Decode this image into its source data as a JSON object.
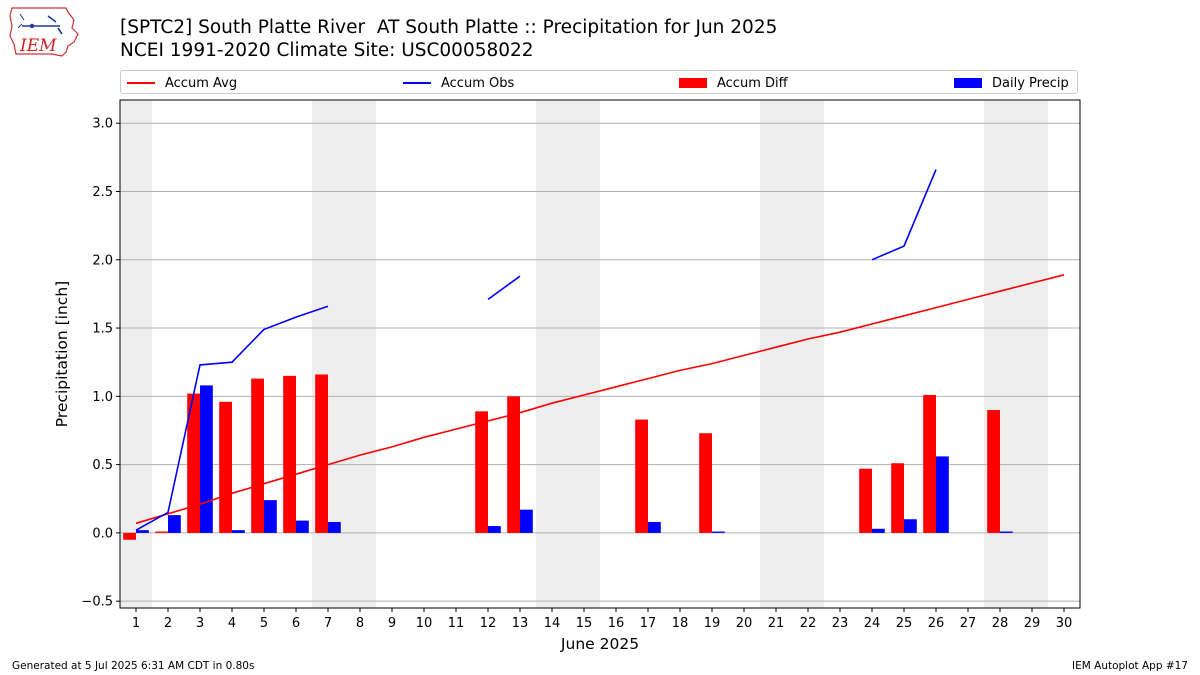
{
  "header": {
    "title": "[SPTC2] South Platte River  AT South Platte :: Precipitation for Jun 2025",
    "subtitle": "NCEI 1991-2020 Climate Site: USC00058022",
    "logo_text": "IEM"
  },
  "legend": {
    "accum_avg": "Accum Avg",
    "accum_obs": "Accum Obs",
    "accum_diff": "Accum Diff",
    "daily_precip": "Daily Precip"
  },
  "footer": {
    "generated": "Generated at 5 Jul 2025 6:31 AM CDT in 0.80s",
    "app": "IEM Autoplot App #17"
  },
  "colors": {
    "accum_avg": "#ff0000",
    "accum_obs": "#0000ff",
    "accum_diff": "#ff0000",
    "daily_precip": "#0000ff",
    "weekend_shade": "#eeeeee",
    "grid": "#b0b0b0"
  },
  "chart_data": {
    "type": "bar",
    "xlabel": "June 2025",
    "ylabel": "Precipitation [inch]",
    "xlim": [
      0.5,
      30.5
    ],
    "ylim": [
      -0.55,
      3.17
    ],
    "yticks": [
      -0.5,
      0.0,
      0.5,
      1.0,
      1.5,
      2.0,
      2.5,
      3.0
    ],
    "ytick_labels": [
      "−0.5",
      "0.0",
      "0.5",
      "1.0",
      "1.5",
      "2.0",
      "2.5",
      "3.0"
    ],
    "days": [
      1,
      2,
      3,
      4,
      5,
      6,
      7,
      8,
      9,
      10,
      11,
      12,
      13,
      14,
      15,
      16,
      17,
      18,
      19,
      20,
      21,
      22,
      23,
      24,
      25,
      26,
      27,
      28,
      29,
      30
    ],
    "grid": "horizontal",
    "legend_position": "top",
    "weekend_spans": [
      [
        0.5,
        1.5
      ],
      [
        6.5,
        8.5
      ],
      [
        13.5,
        15.5
      ],
      [
        20.5,
        22.5
      ],
      [
        27.5,
        29.5
      ]
    ],
    "series": [
      {
        "name": "Accum Diff",
        "kind": "bar",
        "values": [
          -0.05,
          0.01,
          1.02,
          0.96,
          1.13,
          1.15,
          1.16,
          null,
          null,
          null,
          null,
          0.89,
          1.0,
          null,
          null,
          null,
          0.83,
          null,
          0.73,
          null,
          null,
          null,
          null,
          0.47,
          0.51,
          1.01,
          null,
          0.9,
          null,
          null
        ]
      },
      {
        "name": "Daily Precip",
        "kind": "bar",
        "values": [
          0.02,
          0.13,
          1.08,
          0.02,
          0.24,
          0.09,
          0.08,
          null,
          null,
          null,
          null,
          0.05,
          0.17,
          null,
          null,
          null,
          0.08,
          null,
          0.01,
          null,
          null,
          null,
          null,
          0.03,
          0.1,
          0.56,
          null,
          0.01,
          null,
          null
        ]
      },
      {
        "name": "Accum Avg",
        "kind": "line",
        "values": [
          0.07,
          0.14,
          0.21,
          0.29,
          0.36,
          0.43,
          0.5,
          0.57,
          0.63,
          0.7,
          0.76,
          0.82,
          0.88,
          0.95,
          1.01,
          1.07,
          1.13,
          1.19,
          1.24,
          1.3,
          1.36,
          1.42,
          1.47,
          1.53,
          1.59,
          1.65,
          1.71,
          1.77,
          1.83,
          1.89
        ]
      },
      {
        "name": "Accum Obs",
        "kind": "line",
        "values": [
          0.02,
          0.15,
          1.23,
          1.25,
          1.49,
          1.58,
          1.66,
          null,
          null,
          null,
          null,
          1.71,
          1.88,
          null,
          null,
          null,
          null,
          null,
          null,
          null,
          null,
          null,
          null,
          2.0,
          2.1,
          2.66,
          null,
          null,
          null,
          null
        ]
      }
    ]
  }
}
